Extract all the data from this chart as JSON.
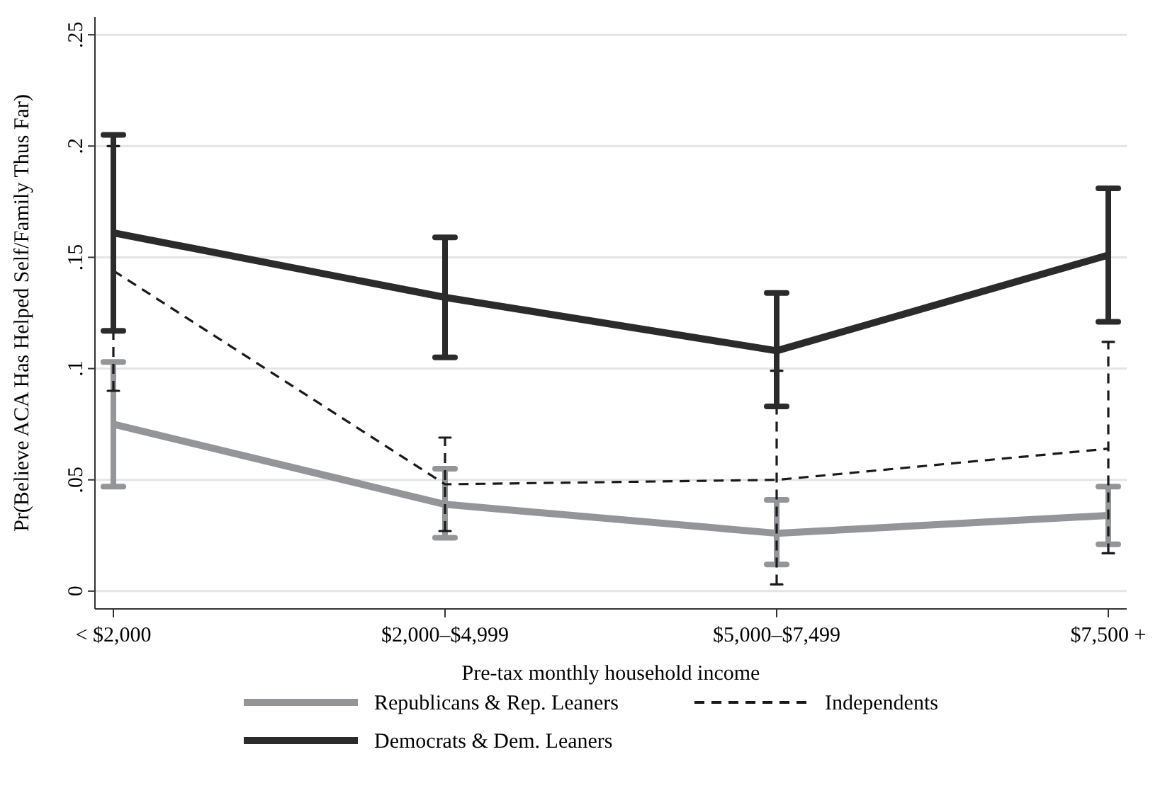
{
  "chart_data": {
    "type": "line",
    "xlabel": "Pre-tax monthly household income",
    "ylabel": "Pr(Believe ACA Has Helped Self/Family Thus Far)",
    "categories": [
      "< $2,000",
      "$2,000–$4,999",
      "$5,000–$7,499",
      "$7,500 +"
    ],
    "ylim": [
      -0.008,
      0.258
    ],
    "yticks": [
      {
        "value": 0,
        "label": "0"
      },
      {
        "value": 0.05,
        "label": ".05"
      },
      {
        "value": 0.1,
        "label": ".1"
      },
      {
        "value": 0.15,
        "label": ".15"
      },
      {
        "value": 0.2,
        "label": ".2"
      },
      {
        "value": 0.25,
        "label": ".25"
      }
    ],
    "grid": "y",
    "legend": "bottom",
    "series": [
      {
        "name": "Republicans & Rep. Leaners",
        "color": "#939598",
        "line_style": "solid",
        "values": [
          0.075,
          0.039,
          0.026,
          0.034
        ],
        "errors": [
          [
            0.047,
            0.103
          ],
          [
            0.024,
            0.055
          ],
          [
            0.012,
            0.041
          ],
          [
            0.021,
            0.047
          ]
        ]
      },
      {
        "name": "Independents",
        "color": "#1a1a1a",
        "line_style": "dashed",
        "values": [
          0.144,
          0.048,
          0.05,
          0.064
        ],
        "errors": [
          [
            0.09,
            0.2
          ],
          [
            0.027,
            0.069
          ],
          [
            0.003,
            0.099
          ],
          [
            0.017,
            0.112
          ]
        ]
      },
      {
        "name": "Democrats & Dem. Leaners",
        "color": "#2b2b2b",
        "line_style": "solid",
        "values": [
          0.161,
          0.132,
          0.108,
          0.151
        ],
        "errors": [
          [
            0.117,
            0.205
          ],
          [
            0.105,
            0.159
          ],
          [
            0.083,
            0.134
          ],
          [
            0.121,
            0.181
          ]
        ]
      }
    ]
  }
}
